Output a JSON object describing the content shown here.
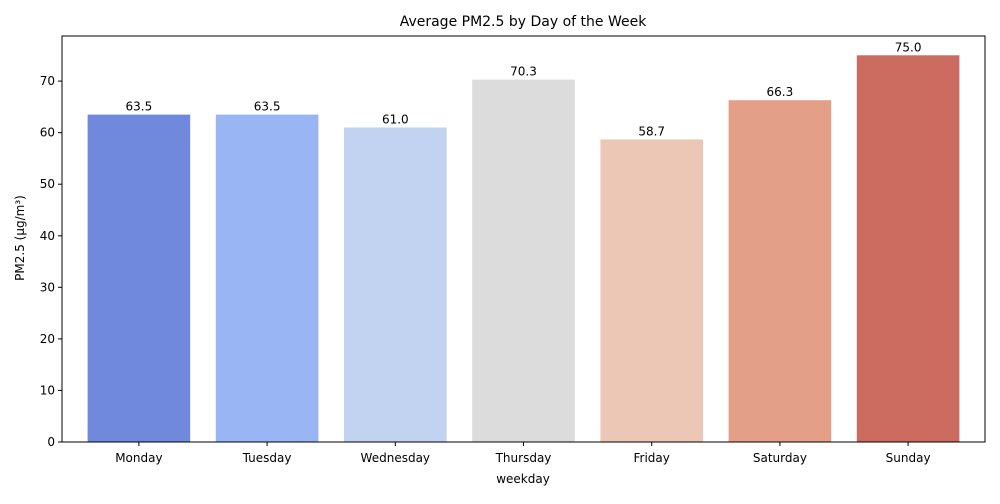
{
  "chart_data": {
    "type": "bar",
    "title": "Average PM2.5 by Day of the Week",
    "xlabel": "weekday",
    "ylabel": "PM2.5 (µg/m³)",
    "categories": [
      "Monday",
      "Tuesday",
      "Wednesday",
      "Thursday",
      "Friday",
      "Saturday",
      "Sunday"
    ],
    "values": [
      63.5,
      63.5,
      61.0,
      70.3,
      58.7,
      66.3,
      75.0
    ],
    "value_labels": [
      "63.5",
      "63.5",
      "61.0",
      "70.3",
      "58.7",
      "66.3",
      "75.0"
    ],
    "colors": [
      "#7089dc",
      "#9ab5f4",
      "#c2d2f1",
      "#dcdcdc",
      "#ecc7b6",
      "#e49f88",
      "#cc6b5f"
    ],
    "ylim": [
      0,
      78.75
    ],
    "yticks": [
      0,
      10,
      20,
      30,
      40,
      50,
      60,
      70
    ],
    "grid": false,
    "legend": "none"
  }
}
